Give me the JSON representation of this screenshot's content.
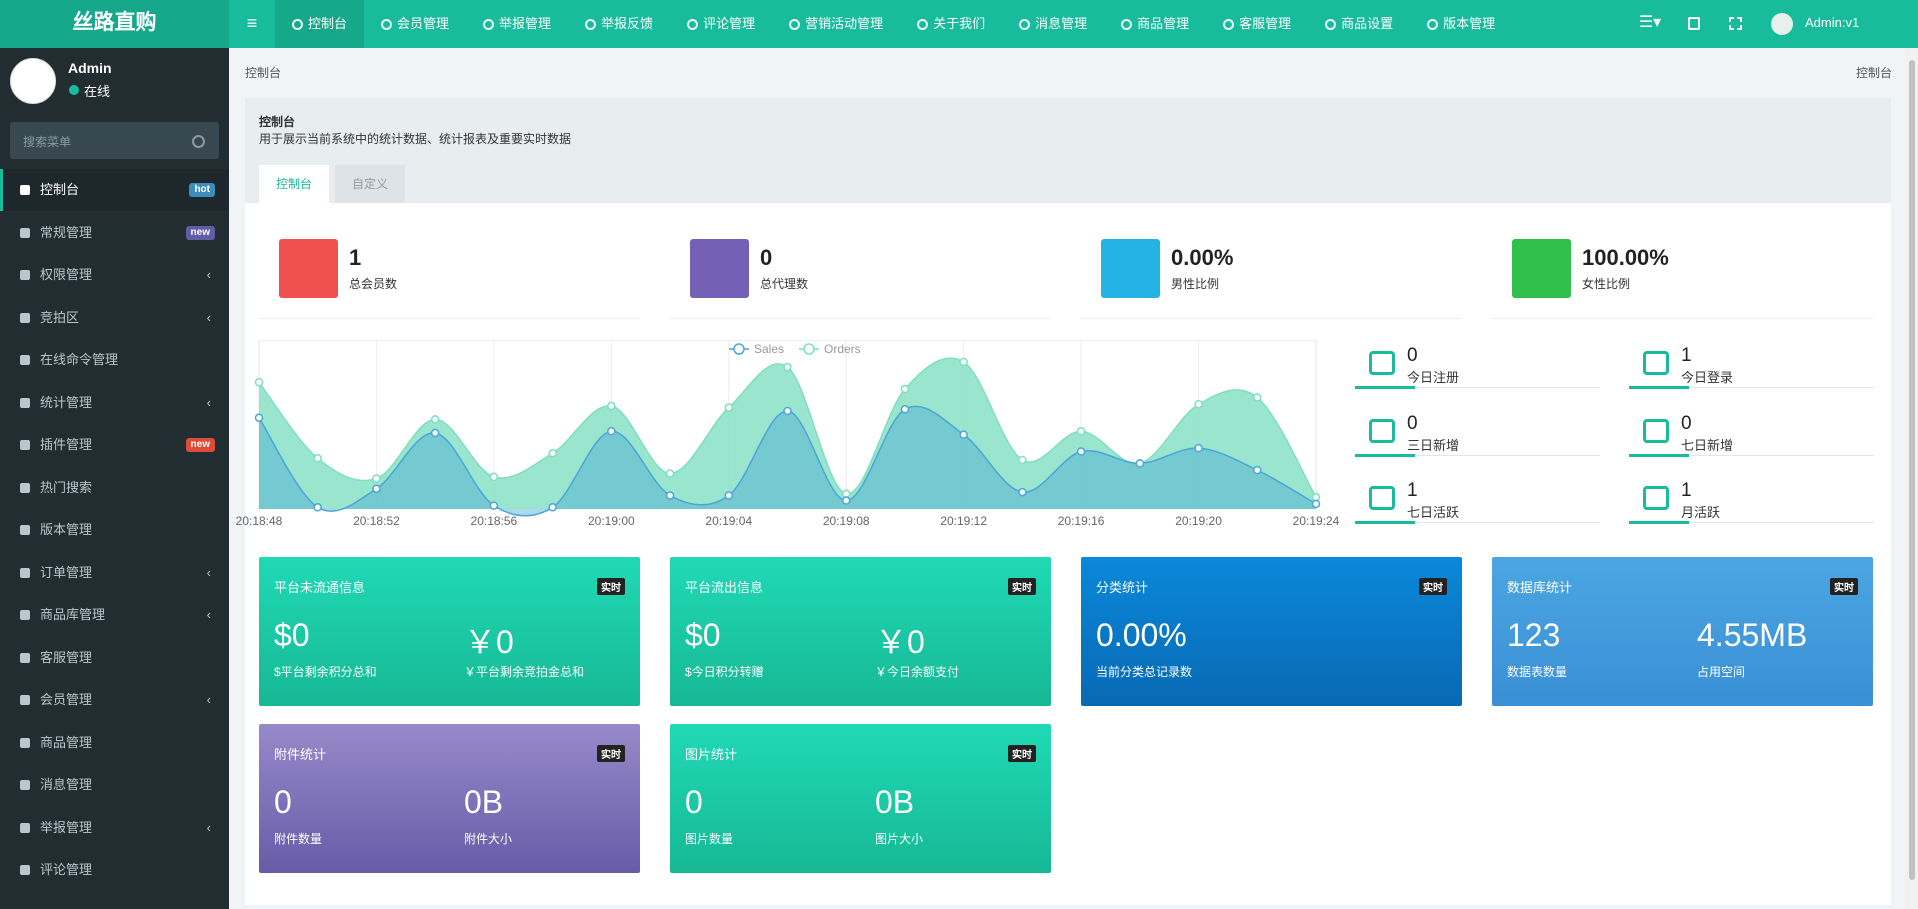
{
  "header": {
    "logo": "丝路直购",
    "nav": [
      "控制台",
      "会员管理",
      "举报管理",
      "举报反馈",
      "评论管理",
      "营销活动管理",
      "关于我们",
      "消息管理",
      "商品管理",
      "客服管理",
      "商品设置",
      "版本管理"
    ],
    "user": "Admin:v1"
  },
  "sidebar": {
    "user": "Admin",
    "status": "在线",
    "search_placeholder": "搜索菜单",
    "menu": [
      {
        "label": "控制台",
        "badge": "hot",
        "badge_color": "#3c8dbc"
      },
      {
        "label": "常规管理",
        "badge": "new",
        "badge_color": "#605ca8"
      },
      {
        "label": "权限管理",
        "submenu": true
      },
      {
        "label": "竞拍区",
        "submenu": true
      },
      {
        "label": "在线命令管理"
      },
      {
        "label": "统计管理",
        "submenu": true
      },
      {
        "label": "插件管理",
        "badge": "new",
        "badge_color": "#dd4b39"
      },
      {
        "label": "热门搜索"
      },
      {
        "label": "版本管理"
      },
      {
        "label": "订单管理",
        "submenu": true
      },
      {
        "label": "商品库管理",
        "submenu": true
      },
      {
        "label": "客服管理"
      },
      {
        "label": "会员管理",
        "submenu": true
      },
      {
        "label": "商品管理"
      },
      {
        "label": "消息管理"
      },
      {
        "label": "举报管理",
        "submenu": true
      },
      {
        "label": "评论管理"
      }
    ]
  },
  "breadcrumb": {
    "current": "控制台",
    "right": "控制台"
  },
  "panel": {
    "title": "控制台",
    "description": "用于展示当前系统中的统计数据、统计报表及重要实时数据",
    "tabs": [
      "控制台",
      "自定义"
    ]
  },
  "stats": [
    {
      "value": "1",
      "label": "总会员数",
      "color": "#f0504f"
    },
    {
      "value": "0",
      "label": "总代理数",
      "color": "#7460b5"
    },
    {
      "value": "0.00%",
      "label": "男性比例",
      "color": "#25b3e6"
    },
    {
      "value": "100.00%",
      "label": "女性比例",
      "color": "#2fbf4a"
    }
  ],
  "mini_stats": [
    {
      "value": "0",
      "label": "今日注册"
    },
    {
      "value": "1",
      "label": "今日登录"
    },
    {
      "value": "0",
      "label": "三日新增"
    },
    {
      "value": "0",
      "label": "七日新增"
    },
    {
      "value": "1",
      "label": "七日活跃"
    },
    {
      "value": "1",
      "label": "月活跃"
    }
  ],
  "cards": [
    {
      "title": "平台未流通信息",
      "badge": "实时",
      "colors": [
        "#20d9b6",
        "#17b894"
      ],
      "items": [
        {
          "value": "$0",
          "label": "$平台剩余积分总和"
        },
        {
          "value": "￥0",
          "label": "￥平台剩余竞拍金总和"
        }
      ]
    },
    {
      "title": "平台流出信息",
      "badge": "实时",
      "colors": [
        "#20d9b6",
        "#17b894"
      ],
      "items": [
        {
          "value": "$0",
          "label": "$今日积分转赠"
        },
        {
          "value": "￥0",
          "label": "￥今日余额支付"
        }
      ]
    },
    {
      "title": "分类统计",
      "badge": "实时",
      "colors": [
        "#0a88da",
        "#0869b3"
      ],
      "items": [
        {
          "value": "0.00%",
          "label": "当前分类总记录数"
        }
      ]
    },
    {
      "title": "数据库统计",
      "badge": "实时",
      "colors": [
        "#4ba6e2",
        "#3a8fd5"
      ],
      "items": [
        {
          "value": "123",
          "label": "数据表数量"
        },
        {
          "value": "4.55MB",
          "label": "占用空间"
        }
      ]
    },
    {
      "title": "附件统计",
      "badge": "实时",
      "colors": [
        "#968ac9",
        "#675ba8"
      ],
      "items": [
        {
          "value": "0",
          "label": "附件数量"
        },
        {
          "value": "0B",
          "label": "附件大小"
        }
      ]
    },
    {
      "title": "图片统计",
      "badge": "实时",
      "colors": [
        "#20d9b6",
        "#17b894"
      ],
      "items": [
        {
          "value": "0",
          "label": "图片数量"
        },
        {
          "value": "0B",
          "label": "图片大小"
        }
      ]
    }
  ],
  "chart_data": {
    "type": "area",
    "legend": "top",
    "grid": true,
    "ylim": [
      0,
      100
    ],
    "x": [
      "20:18:48",
      null,
      "20:18:52",
      null,
      "20:18:56",
      null,
      "20:19:00",
      null,
      "20:19:04",
      null,
      "20:19:08",
      null,
      "20:19:12",
      null,
      "20:19:16",
      null,
      "20:19:20",
      null,
      "20:19:24"
    ],
    "series": [
      {
        "name": "Orders",
        "color": "#7fdfc0",
        "values": [
          75,
          30,
          18,
          53,
          19,
          33,
          61,
          21,
          60,
          84,
          9,
          71,
          87,
          29,
          46,
          27,
          62,
          66,
          7
        ]
      },
      {
        "name": "Sales",
        "color": "#4aa6d8",
        "values": [
          54,
          1,
          12,
          45,
          2,
          1,
          46,
          8,
          8,
          58,
          5,
          59,
          44,
          10,
          34,
          27,
          36,
          23,
          3
        ]
      }
    ]
  }
}
